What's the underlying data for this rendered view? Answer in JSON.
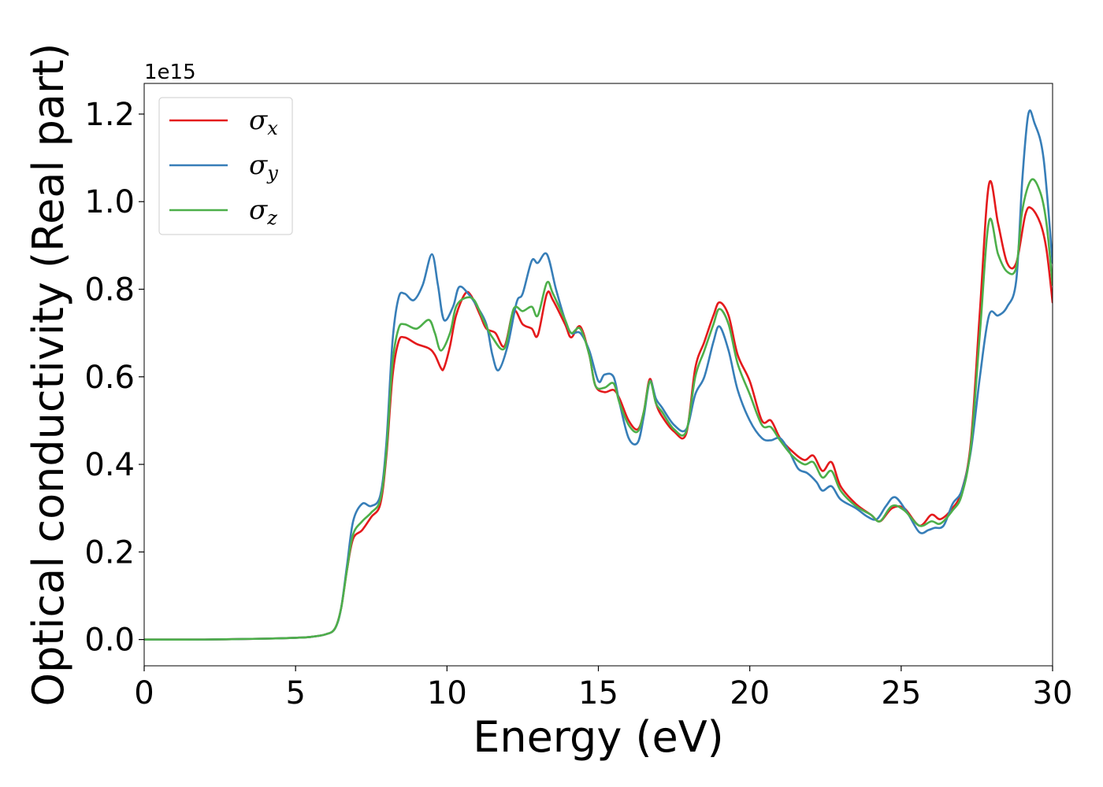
{
  "chart_data": {
    "type": "line",
    "xlabel": "Energy (eV)",
    "ylabel": "Optical conductivity (Real part)",
    "y_offset_label": "1e15",
    "xlim": [
      0,
      30
    ],
    "ylim": [
      -0.06,
      1.27
    ],
    "x_ticks": [
      0,
      5,
      10,
      15,
      20,
      25,
      30
    ],
    "x_tick_labels": [
      "0",
      "5",
      "10",
      "15",
      "20",
      "25",
      "30"
    ],
    "y_ticks": [
      0.0,
      0.2,
      0.4,
      0.6,
      0.8,
      1.0,
      1.2
    ],
    "y_tick_labels": [
      "0.0",
      "0.2",
      "0.4",
      "0.6",
      "0.8",
      "1.0",
      "1.2"
    ],
    "grid": false,
    "legend_position": "top-left",
    "series": [
      {
        "name": "σ",
        "subscript": "x",
        "color": "#e41a1c",
        "points": [
          [
            0,
            0
          ],
          [
            2,
            0
          ],
          [
            4,
            0.002
          ],
          [
            5,
            0.004
          ],
          [
            5.5,
            0.006
          ],
          [
            6,
            0.012
          ],
          [
            6.3,
            0.025
          ],
          [
            6.5,
            0.07
          ],
          [
            6.7,
            0.16
          ],
          [
            6.9,
            0.23
          ],
          [
            7.2,
            0.25
          ],
          [
            7.5,
            0.28
          ],
          [
            7.8,
            0.31
          ],
          [
            8.0,
            0.42
          ],
          [
            8.2,
            0.6
          ],
          [
            8.4,
            0.68
          ],
          [
            8.6,
            0.69
          ],
          [
            9.0,
            0.675
          ],
          [
            9.4,
            0.665
          ],
          [
            9.6,
            0.65
          ],
          [
            9.8,
            0.62
          ],
          [
            9.9,
            0.62
          ],
          [
            10.1,
            0.67
          ],
          [
            10.3,
            0.74
          ],
          [
            10.6,
            0.79
          ],
          [
            10.8,
            0.785
          ],
          [
            11.1,
            0.74
          ],
          [
            11.3,
            0.71
          ],
          [
            11.6,
            0.7
          ],
          [
            11.9,
            0.67
          ],
          [
            12.2,
            0.75
          ],
          [
            12.5,
            0.72
          ],
          [
            12.8,
            0.71
          ],
          [
            13.0,
            0.695
          ],
          [
            13.3,
            0.79
          ],
          [
            13.5,
            0.775
          ],
          [
            13.9,
            0.72
          ],
          [
            14.1,
            0.69
          ],
          [
            14.4,
            0.715
          ],
          [
            14.7,
            0.65
          ],
          [
            14.9,
            0.58
          ],
          [
            15.2,
            0.565
          ],
          [
            15.5,
            0.57
          ],
          [
            15.7,
            0.55
          ],
          [
            16.0,
            0.5
          ],
          [
            16.3,
            0.48
          ],
          [
            16.5,
            0.52
          ],
          [
            16.7,
            0.595
          ],
          [
            16.9,
            0.54
          ],
          [
            17.1,
            0.51
          ],
          [
            17.5,
            0.475
          ],
          [
            17.9,
            0.47
          ],
          [
            18.2,
            0.62
          ],
          [
            18.5,
            0.68
          ],
          [
            18.8,
            0.74
          ],
          [
            19.0,
            0.77
          ],
          [
            19.3,
            0.74
          ],
          [
            19.6,
            0.65
          ],
          [
            20.0,
            0.59
          ],
          [
            20.4,
            0.5
          ],
          [
            20.7,
            0.5
          ],
          [
            21.0,
            0.46
          ],
          [
            21.4,
            0.43
          ],
          [
            21.8,
            0.41
          ],
          [
            22.1,
            0.42
          ],
          [
            22.4,
            0.385
          ],
          [
            22.7,
            0.405
          ],
          [
            23.0,
            0.35
          ],
          [
            23.5,
            0.31
          ],
          [
            24.0,
            0.285
          ],
          [
            24.3,
            0.27
          ],
          [
            24.7,
            0.3
          ],
          [
            25.1,
            0.3
          ],
          [
            25.6,
            0.26
          ],
          [
            26.0,
            0.285
          ],
          [
            26.3,
            0.275
          ],
          [
            26.7,
            0.3
          ],
          [
            27.0,
            0.34
          ],
          [
            27.3,
            0.45
          ],
          [
            27.6,
            0.75
          ],
          [
            27.9,
            1.04
          ],
          [
            28.2,
            0.95
          ],
          [
            28.5,
            0.86
          ],
          [
            28.8,
            0.86
          ],
          [
            29.1,
            0.97
          ],
          [
            29.3,
            0.985
          ],
          [
            29.6,
            0.95
          ],
          [
            29.8,
            0.89
          ],
          [
            30.0,
            0.77
          ]
        ]
      },
      {
        "name": "σ",
        "subscript": "y",
        "color": "#377eb8",
        "points": [
          [
            0,
            0
          ],
          [
            2,
            0
          ],
          [
            4,
            0.002
          ],
          [
            5,
            0.004
          ],
          [
            5.5,
            0.006
          ],
          [
            6,
            0.012
          ],
          [
            6.3,
            0.025
          ],
          [
            6.5,
            0.07
          ],
          [
            6.7,
            0.17
          ],
          [
            6.9,
            0.27
          ],
          [
            7.2,
            0.31
          ],
          [
            7.5,
            0.305
          ],
          [
            7.8,
            0.33
          ],
          [
            8.0,
            0.45
          ],
          [
            8.2,
            0.68
          ],
          [
            8.4,
            0.78
          ],
          [
            8.6,
            0.79
          ],
          [
            8.9,
            0.775
          ],
          [
            9.2,
            0.81
          ],
          [
            9.5,
            0.88
          ],
          [
            9.7,
            0.81
          ],
          [
            9.9,
            0.73
          ],
          [
            10.2,
            0.76
          ],
          [
            10.4,
            0.805
          ],
          [
            10.7,
            0.79
          ],
          [
            11.0,
            0.76
          ],
          [
            11.3,
            0.72
          ],
          [
            11.5,
            0.65
          ],
          [
            11.7,
            0.615
          ],
          [
            12.0,
            0.67
          ],
          [
            12.3,
            0.77
          ],
          [
            12.5,
            0.79
          ],
          [
            12.8,
            0.865
          ],
          [
            13.0,
            0.86
          ],
          [
            13.3,
            0.88
          ],
          [
            13.6,
            0.8
          ],
          [
            13.9,
            0.73
          ],
          [
            14.1,
            0.7
          ],
          [
            14.4,
            0.7
          ],
          [
            14.7,
            0.66
          ],
          [
            15.0,
            0.59
          ],
          [
            15.2,
            0.605
          ],
          [
            15.5,
            0.6
          ],
          [
            15.7,
            0.54
          ],
          [
            16.0,
            0.46
          ],
          [
            16.3,
            0.45
          ],
          [
            16.5,
            0.51
          ],
          [
            16.7,
            0.59
          ],
          [
            16.9,
            0.55
          ],
          [
            17.1,
            0.53
          ],
          [
            17.5,
            0.49
          ],
          [
            17.9,
            0.48
          ],
          [
            18.2,
            0.56
          ],
          [
            18.5,
            0.6
          ],
          [
            18.8,
            0.68
          ],
          [
            19.0,
            0.715
          ],
          [
            19.3,
            0.66
          ],
          [
            19.6,
            0.57
          ],
          [
            20.0,
            0.5
          ],
          [
            20.4,
            0.46
          ],
          [
            20.7,
            0.455
          ],
          [
            21.0,
            0.46
          ],
          [
            21.3,
            0.43
          ],
          [
            21.6,
            0.39
          ],
          [
            21.9,
            0.38
          ],
          [
            22.2,
            0.36
          ],
          [
            22.4,
            0.34
          ],
          [
            22.7,
            0.35
          ],
          [
            23.0,
            0.32
          ],
          [
            23.5,
            0.3
          ],
          [
            23.9,
            0.28
          ],
          [
            24.2,
            0.275
          ],
          [
            24.5,
            0.305
          ],
          [
            24.8,
            0.325
          ],
          [
            25.2,
            0.29
          ],
          [
            25.6,
            0.245
          ],
          [
            25.9,
            0.25
          ],
          [
            26.1,
            0.255
          ],
          [
            26.4,
            0.26
          ],
          [
            26.7,
            0.31
          ],
          [
            27.0,
            0.34
          ],
          [
            27.3,
            0.43
          ],
          [
            27.6,
            0.6
          ],
          [
            27.9,
            0.74
          ],
          [
            28.2,
            0.74
          ],
          [
            28.5,
            0.76
          ],
          [
            28.8,
            0.82
          ],
          [
            29.0,
            1.05
          ],
          [
            29.2,
            1.2
          ],
          [
            29.4,
            1.18
          ],
          [
            29.7,
            1.1
          ],
          [
            30.0,
            0.86
          ]
        ]
      },
      {
        "name": "σ",
        "subscript": "z",
        "color": "#4daf4a",
        "points": [
          [
            0,
            0
          ],
          [
            2,
            0
          ],
          [
            4,
            0.002
          ],
          [
            5,
            0.004
          ],
          [
            5.5,
            0.006
          ],
          [
            6,
            0.012
          ],
          [
            6.3,
            0.025
          ],
          [
            6.5,
            0.07
          ],
          [
            6.7,
            0.16
          ],
          [
            6.9,
            0.24
          ],
          [
            7.2,
            0.27
          ],
          [
            7.5,
            0.29
          ],
          [
            7.8,
            0.32
          ],
          [
            8.0,
            0.43
          ],
          [
            8.2,
            0.63
          ],
          [
            8.4,
            0.71
          ],
          [
            8.6,
            0.72
          ],
          [
            9.0,
            0.71
          ],
          [
            9.4,
            0.73
          ],
          [
            9.6,
            0.7
          ],
          [
            9.8,
            0.66
          ],
          [
            10.1,
            0.7
          ],
          [
            10.3,
            0.76
          ],
          [
            10.6,
            0.78
          ],
          [
            10.9,
            0.775
          ],
          [
            11.2,
            0.73
          ],
          [
            11.5,
            0.69
          ],
          [
            11.9,
            0.665
          ],
          [
            12.2,
            0.755
          ],
          [
            12.5,
            0.75
          ],
          [
            12.8,
            0.76
          ],
          [
            13.0,
            0.74
          ],
          [
            13.3,
            0.815
          ],
          [
            13.5,
            0.79
          ],
          [
            13.9,
            0.73
          ],
          [
            14.1,
            0.7
          ],
          [
            14.4,
            0.71
          ],
          [
            14.7,
            0.65
          ],
          [
            14.9,
            0.58
          ],
          [
            15.2,
            0.575
          ],
          [
            15.5,
            0.585
          ],
          [
            15.7,
            0.54
          ],
          [
            16.0,
            0.49
          ],
          [
            16.3,
            0.475
          ],
          [
            16.5,
            0.52
          ],
          [
            16.7,
            0.59
          ],
          [
            16.9,
            0.54
          ],
          [
            17.1,
            0.52
          ],
          [
            17.5,
            0.48
          ],
          [
            17.9,
            0.475
          ],
          [
            18.2,
            0.6
          ],
          [
            18.5,
            0.66
          ],
          [
            18.8,
            0.72
          ],
          [
            19.0,
            0.755
          ],
          [
            19.3,
            0.72
          ],
          [
            19.6,
            0.63
          ],
          [
            20.0,
            0.56
          ],
          [
            20.4,
            0.49
          ],
          [
            20.7,
            0.485
          ],
          [
            21.0,
            0.455
          ],
          [
            21.4,
            0.42
          ],
          [
            21.8,
            0.4
          ],
          [
            22.1,
            0.405
          ],
          [
            22.4,
            0.37
          ],
          [
            22.7,
            0.385
          ],
          [
            23.0,
            0.34
          ],
          [
            23.5,
            0.305
          ],
          [
            24.0,
            0.285
          ],
          [
            24.3,
            0.27
          ],
          [
            24.7,
            0.305
          ],
          [
            25.1,
            0.295
          ],
          [
            25.6,
            0.26
          ],
          [
            26.0,
            0.27
          ],
          [
            26.3,
            0.265
          ],
          [
            26.7,
            0.295
          ],
          [
            27.0,
            0.33
          ],
          [
            27.3,
            0.44
          ],
          [
            27.6,
            0.7
          ],
          [
            27.9,
            0.955
          ],
          [
            28.2,
            0.88
          ],
          [
            28.5,
            0.84
          ],
          [
            28.8,
            0.85
          ],
          [
            29.0,
            0.98
          ],
          [
            29.3,
            1.05
          ],
          [
            29.6,
            1.02
          ],
          [
            29.8,
            0.95
          ],
          [
            30.0,
            0.81
          ]
        ]
      }
    ]
  }
}
